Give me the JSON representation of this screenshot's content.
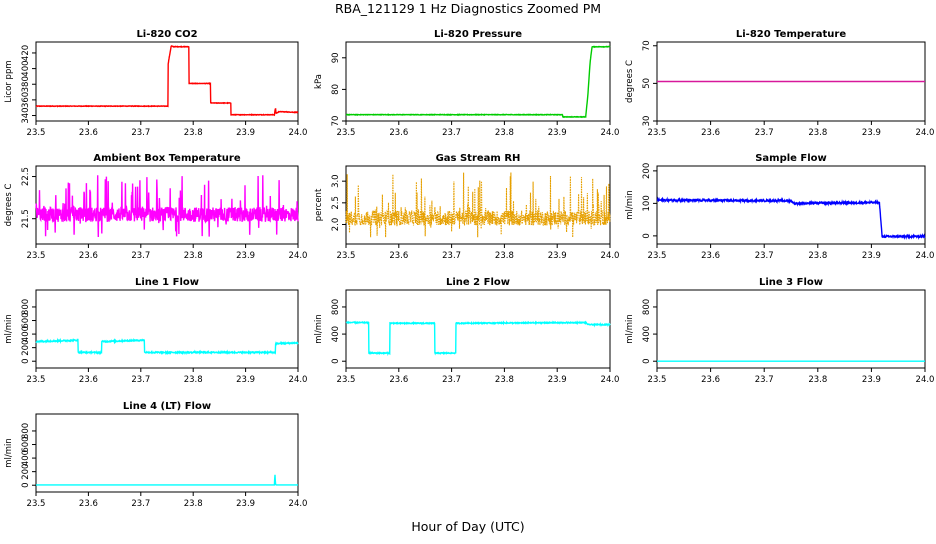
{
  "figure": {
    "title": "RBA_121129  1 Hz Diagnostics Zoomed PM",
    "xlabel": "Hour of Day (UTC)"
  },
  "chart_data": [
    {
      "type": "line",
      "title": "Li-820 CO2",
      "ylabel": "Licor ppm",
      "color": "#ff0000",
      "xlim": [
        23.5,
        24.0
      ],
      "ylim": [
        333,
        434
      ],
      "xticks": [
        23.5,
        23.6,
        23.7,
        23.8,
        23.9,
        24.0
      ],
      "xtick_labels": [
        "23.5",
        "23.6",
        "23.7",
        "23.8",
        "23.9",
        "24.0"
      ],
      "yticks": [
        340,
        360,
        380,
        400,
        420
      ],
      "ytick_labels": [
        "340",
        "360",
        "380",
        "400",
        "420"
      ],
      "noise": 0.6,
      "series": [
        {
          "x": [
            23.5,
            23.752,
            23.752,
            23.758,
            23.762,
            23.792,
            23.792,
            23.833,
            23.833,
            23.872,
            23.872,
            23.955,
            23.957,
            23.958,
            23.962,
            23.963,
            24.0
          ],
          "y": [
            352,
            352,
            405,
            429,
            428,
            428,
            381,
            381,
            356,
            356,
            341,
            341,
            350,
            343,
            344,
            345,
            344
          ]
        }
      ]
    },
    {
      "type": "line",
      "title": "Li-820 Pressure",
      "ylabel": "kPa",
      "color": "#00cc00",
      "xlim": [
        23.5,
        24.0
      ],
      "ylim": [
        70,
        95
      ],
      "xticks": [
        23.5,
        23.6,
        23.7,
        23.8,
        23.9,
        24.0
      ],
      "xtick_labels": [
        "23.5",
        "23.6",
        "23.7",
        "23.8",
        "23.9",
        "24.0"
      ],
      "yticks": [
        70,
        80,
        90
      ],
      "ytick_labels": [
        "70",
        "80",
        "90"
      ],
      "noise": 0.15,
      "series": [
        {
          "x": [
            23.5,
            23.91,
            23.91,
            23.954,
            23.958,
            23.962,
            23.966,
            24.0
          ],
          "y": [
            72,
            72,
            71.3,
            71.3,
            78,
            88,
            93.5,
            93.5
          ]
        }
      ]
    },
    {
      "type": "line",
      "title": "Li-820 Temperature",
      "ylabel": "degrees C",
      "color": "#d7189b",
      "xlim": [
        23.5,
        24.0
      ],
      "ylim": [
        30,
        72
      ],
      "xticks": [
        23.5,
        23.6,
        23.7,
        23.8,
        23.9,
        24.0
      ],
      "xtick_labels": [
        "23.5",
        "23.6",
        "23.7",
        "23.8",
        "23.9",
        "24.0"
      ],
      "yticks": [
        30,
        50,
        70
      ],
      "ytick_labels": [
        "30",
        "50",
        "70"
      ],
      "noise": 0,
      "series": [
        {
          "x": [
            23.5,
            24.0
          ],
          "y": [
            51,
            51
          ]
        }
      ]
    },
    {
      "type": "line",
      "title": "Ambient Box Temperature",
      "ylabel": "degrees C",
      "color": "#ff00ff",
      "xlim": [
        23.5,
        24.0
      ],
      "ylim": [
        20.9,
        22.75
      ],
      "xticks": [
        23.5,
        23.6,
        23.7,
        23.8,
        23.9,
        24.0
      ],
      "xtick_labels": [
        "23.5",
        "23.6",
        "23.7",
        "23.8",
        "23.9",
        "24.0"
      ],
      "yticks": [
        21.5,
        22.5
      ],
      "ytick_labels": [
        "21.5",
        "22.5"
      ],
      "noise": 0.35,
      "spikes": [
        21.05,
        22.55
      ],
      "series": [
        {
          "x": [
            23.5,
            24.0
          ],
          "y": [
            21.6,
            21.6
          ]
        }
      ]
    },
    {
      "type": "scatter",
      "title": "Gas Stream RH",
      "ylabel": "percent",
      "color": "#e6a000",
      "xlim": [
        23.5,
        24.0
      ],
      "ylim": [
        1.55,
        3.35
      ],
      "xticks": [
        23.5,
        23.6,
        23.7,
        23.8,
        23.9,
        24.0
      ],
      "xtick_labels": [
        "23.5",
        "23.6",
        "23.7",
        "23.8",
        "23.9",
        "24.0"
      ],
      "yticks": [
        2.0,
        2.5,
        3.0
      ],
      "ytick_labels": [
        "2.0",
        "2.5",
        "3.0"
      ],
      "noise": 0.35,
      "spikes": [
        1.7,
        3.2
      ],
      "series": [
        {
          "x": [
            23.5,
            24.0
          ],
          "y": [
            2.15,
            2.15
          ]
        }
      ]
    },
    {
      "type": "line",
      "title": "Sample Flow",
      "ylabel": "ml/min",
      "color": "#0000ff",
      "xlim": [
        23.5,
        24.0
      ],
      "ylim": [
        -25,
        215
      ],
      "xticks": [
        23.5,
        23.6,
        23.7,
        23.8,
        23.9,
        24.0
      ],
      "xtick_labels": [
        "23.5",
        "23.6",
        "23.7",
        "23.8",
        "23.9",
        "24.0"
      ],
      "yticks": [
        0,
        100,
        200
      ],
      "ytick_labels": [
        "0",
        "100",
        "200"
      ],
      "noise": 6,
      "series": [
        {
          "x": [
            23.5,
            23.75,
            23.755,
            23.915,
            23.92,
            24.0
          ],
          "y": [
            110,
            108,
            100,
            103,
            -2,
            -2
          ]
        }
      ]
    },
    {
      "type": "line",
      "title": "Line 1 Flow",
      "ylabel": "ml/min",
      "color": "#00ffff",
      "xlim": [
        23.5,
        24.0
      ],
      "ylim": [
        -100,
        1050
      ],
      "xticks": [
        23.5,
        23.6,
        23.7,
        23.8,
        23.9,
        24.0
      ],
      "xtick_labels": [
        "23.5",
        "23.6",
        "23.7",
        "23.8",
        "23.9",
        "24.0"
      ],
      "yticks": [
        0,
        200,
        400,
        600,
        800
      ],
      "ytick_labels": [
        "0",
        "200",
        "400",
        "600",
        "800"
      ],
      "noise": 18,
      "series": [
        {
          "x": [
            23.5,
            23.58,
            23.58,
            23.625,
            23.625,
            23.707,
            23.707,
            23.957,
            23.957,
            24.0
          ],
          "y": [
            290,
            310,
            130,
            130,
            290,
            310,
            130,
            130,
            260,
            270
          ]
        }
      ]
    },
    {
      "type": "line",
      "title": "Line 2 Flow",
      "ylabel": "ml/min",
      "color": "#00ffff",
      "xlim": [
        23.5,
        24.0
      ],
      "ylim": [
        -100,
        1050
      ],
      "xticks": [
        23.5,
        23.6,
        23.7,
        23.8,
        23.9,
        24.0
      ],
      "xtick_labels": [
        "23.5",
        "23.6",
        "23.7",
        "23.8",
        "23.9",
        "24.0"
      ],
      "yticks": [
        0,
        400,
        800
      ],
      "ytick_labels": [
        "0",
        "400",
        "800"
      ],
      "noise": 14,
      "series": [
        {
          "x": [
            23.5,
            23.543,
            23.543,
            23.583,
            23.583,
            23.668,
            23.668,
            23.708,
            23.708,
            23.955,
            23.958,
            24.0
          ],
          "y": [
            570,
            570,
            120,
            120,
            560,
            560,
            120,
            120,
            560,
            570,
            540,
            540
          ]
        }
      ]
    },
    {
      "type": "line",
      "title": "Line 3 Flow",
      "ylabel": "ml/min",
      "color": "#00ffff",
      "xlim": [
        23.5,
        24.0
      ],
      "ylim": [
        -100,
        1050
      ],
      "xticks": [
        23.5,
        23.6,
        23.7,
        23.8,
        23.9,
        24.0
      ],
      "xtick_labels": [
        "23.5",
        "23.6",
        "23.7",
        "23.8",
        "23.9",
        "24.0"
      ],
      "yticks": [
        0,
        400,
        800
      ],
      "ytick_labels": [
        "0",
        "400",
        "800"
      ],
      "noise": 0,
      "series": [
        {
          "x": [
            23.5,
            24.0
          ],
          "y": [
            0,
            0
          ]
        }
      ]
    },
    {
      "type": "line",
      "title": "Line 4 (LT) Flow",
      "ylabel": "ml/min",
      "color": "#00ffff",
      "xlim": [
        23.5,
        24.0
      ],
      "ylim": [
        -100,
        1050
      ],
      "xticks": [
        23.5,
        23.6,
        23.7,
        23.8,
        23.9,
        24.0
      ],
      "xtick_labels": [
        "23.5",
        "23.6",
        "23.7",
        "23.8",
        "23.9",
        "24.0"
      ],
      "yticks": [
        0,
        200,
        400,
        600,
        800
      ],
      "ytick_labels": [
        "0",
        "200",
        "400",
        "600",
        "800"
      ],
      "noise": 0,
      "series": [
        {
          "x": [
            23.5,
            23.955,
            23.956,
            23.957,
            23.958,
            24.0
          ],
          "y": [
            5,
            5,
            170,
            20,
            5,
            5
          ]
        }
      ]
    }
  ]
}
